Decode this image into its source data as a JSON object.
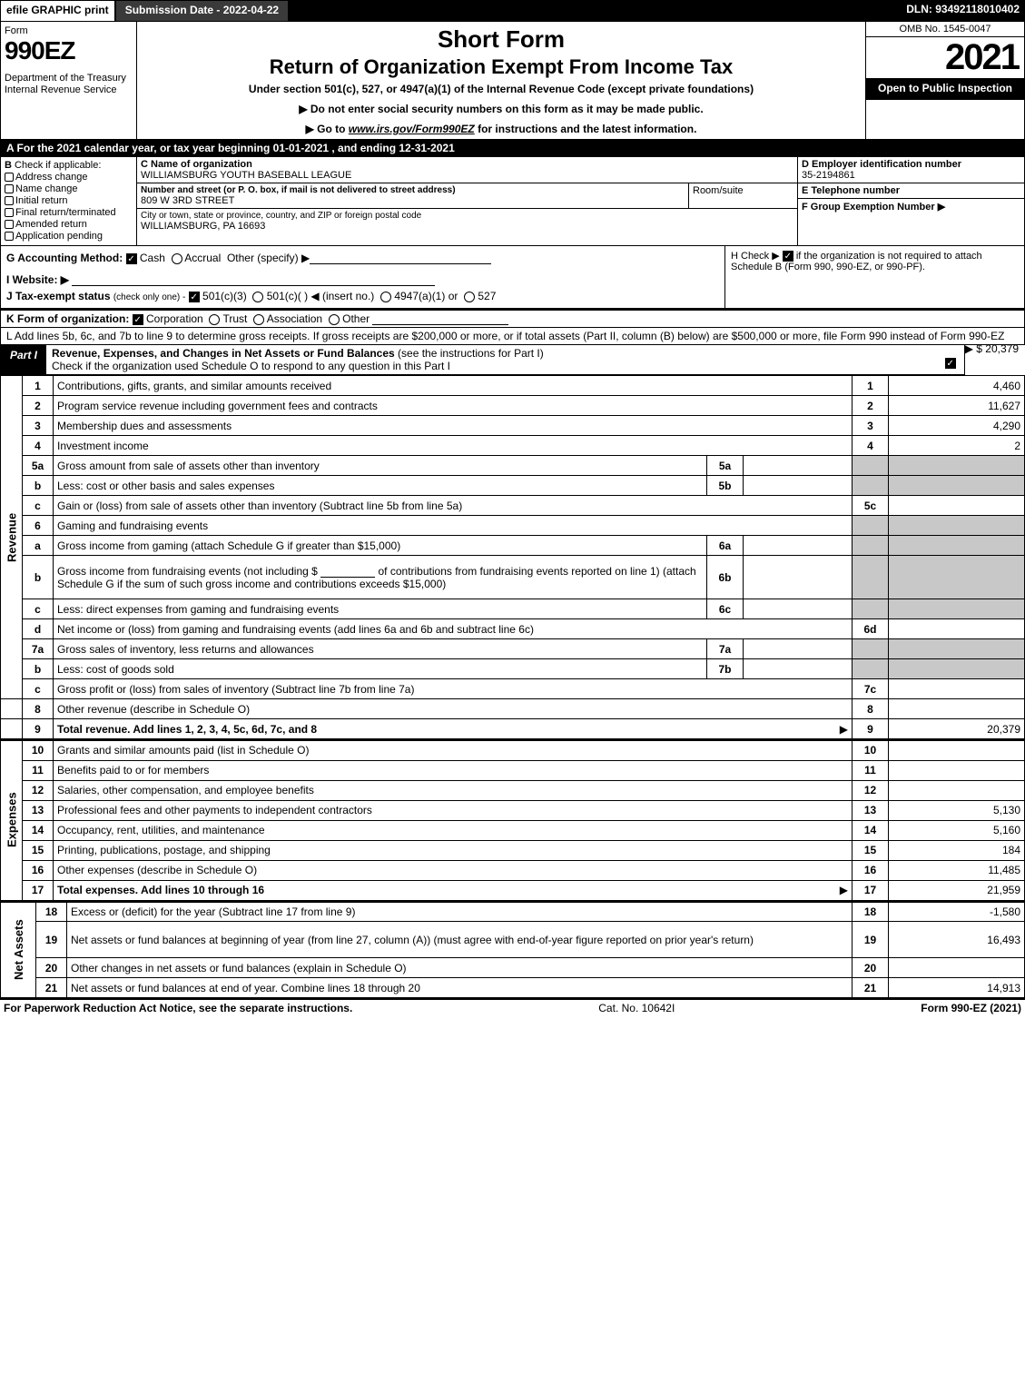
{
  "topbar": {
    "efile": "efile GRAPHIC print",
    "subdate": "Submission Date - 2022-04-22",
    "dln": "DLN: 93492118010402"
  },
  "header": {
    "form_word": "Form",
    "form_no": "990EZ",
    "dept": "Department of the Treasury\nInternal Revenue Service",
    "short_form": "Short Form",
    "return_title": "Return of Organization Exempt From Income Tax",
    "subtitle": "Under section 501(c), 527, or 4947(a)(1) of the Internal Revenue Code (except private foundations)",
    "note1": "▶ Do not enter social security numbers on this form as it may be made public.",
    "note2_pre": "▶ Go to ",
    "note2_link": "www.irs.gov/Form990EZ",
    "note2_post": " for instructions and the latest information.",
    "omb": "OMB No. 1545-0047",
    "year": "2021",
    "open": "Open to Public Inspection"
  },
  "rowA": "A  For the 2021 calendar year, or tax year beginning 01-01-2021 , and ending 12-31-2021",
  "colB": {
    "hdr": "B",
    "hdr2": "Check if applicable:",
    "items": [
      "Address change",
      "Name change",
      "Initial return",
      "Final return/terminated",
      "Amended return",
      "Application pending"
    ]
  },
  "colC": {
    "c_lbl": "C Name of organization",
    "c_val": "WILLIAMSBURG YOUTH BASEBALL LEAGUE",
    "street_lbl": "Number and street (or P. O. box, if mail is not delivered to street address)",
    "street_val": "809 W 3RD STREET",
    "room_lbl": "Room/suite",
    "city_lbl": "City or town, state or province, country, and ZIP or foreign postal code",
    "city_val": "WILLIAMSBURG, PA  16693"
  },
  "colDEF": {
    "d_lbl": "D Employer identification number",
    "d_val": "35-2194861",
    "e_lbl": "E Telephone number",
    "e_val": "",
    "f_lbl": "F Group Exemption Number  ▶",
    "f_val": ""
  },
  "misc": {
    "g": "G Accounting Method:",
    "g_cash": "Cash",
    "g_accrual": "Accrual",
    "g_other": "Other (specify) ▶",
    "i": "I Website: ▶",
    "j": "J Tax-exempt status",
    "j_note": "(check only one) -",
    "j_501c3": "501(c)(3)",
    "j_501c": "501(c)(  ) ◀ (insert no.)",
    "j_4947": "4947(a)(1) or",
    "j_527": "527",
    "h_pre": "H  Check ▶ ",
    "h_post": " if the organization is not required to attach Schedule B (Form 990, 990-EZ, or 990-PF)."
  },
  "rowK": {
    "k_pre": "K Form of organization: ",
    "k_corp": "Corporation",
    "k_trust": "Trust",
    "k_assoc": "Association",
    "k_other": "Other"
  },
  "rowL": {
    "text": "L Add lines 5b, 6c, and 7b to line 9 to determine gross receipts. If gross receipts are $200,000 or more, or if total assets (Part II, column (B) below) are $500,000 or more, file Form 990 instead of Form 990-EZ",
    "val": "▶ $ 20,379"
  },
  "partI": {
    "tab": "Part I",
    "title_bold": "Revenue, Expenses, and Changes in Net Assets or Fund Balances",
    "title_rest": " (see the instructions for Part I)",
    "sub": "Check if the organization used Schedule O to respond to any question in this Part I"
  },
  "sides": {
    "revenue": "Revenue",
    "expenses": "Expenses",
    "netassets": "Net Assets"
  },
  "revenue_lines": [
    {
      "n": "1",
      "desc": "Contributions, gifts, grants, and similar amounts received",
      "rn": "1",
      "val": "4,460"
    },
    {
      "n": "2",
      "desc": "Program service revenue including government fees and contracts",
      "rn": "2",
      "val": "11,627"
    },
    {
      "n": "3",
      "desc": "Membership dues and assessments",
      "rn": "3",
      "val": "4,290"
    },
    {
      "n": "4",
      "desc": "Investment income",
      "rn": "4",
      "val": "2"
    }
  ],
  "line5": {
    "a_n": "5a",
    "a_desc": "Gross amount from sale of assets other than inventory",
    "a_in": "5a",
    "b_n": "b",
    "b_desc": "Less: cost or other basis and sales expenses",
    "b_in": "5b",
    "c_n": "c",
    "c_desc": "Gain or (loss) from sale of assets other than inventory (Subtract line 5b from line 5a)",
    "c_rn": "5c"
  },
  "line6": {
    "hdr_n": "6",
    "hdr_desc": "Gaming and fundraising events",
    "a_n": "a",
    "a_desc": "Gross income from gaming (attach Schedule G if greater than $15,000)",
    "a_in": "6a",
    "b_n": "b",
    "b_desc1": "Gross income from fundraising events (not including $",
    "b_desc2": "of contributions from fundraising events reported on line 1) (attach Schedule G if the sum of such gross income and contributions exceeds $15,000)",
    "b_in": "6b",
    "c_n": "c",
    "c_desc": "Less: direct expenses from gaming and fundraising events",
    "c_in": "6c",
    "d_n": "d",
    "d_desc": "Net income or (loss) from gaming and fundraising events (add lines 6a and 6b and subtract line 6c)",
    "d_rn": "6d"
  },
  "line7": {
    "a_n": "7a",
    "a_desc": "Gross sales of inventory, less returns and allowances",
    "a_in": "7a",
    "b_n": "b",
    "b_desc": "Less: cost of goods sold",
    "b_in": "7b",
    "c_n": "c",
    "c_desc": "Gross profit or (loss) from sales of inventory (Subtract line 7b from line 7a)",
    "c_rn": "7c"
  },
  "line8": {
    "n": "8",
    "desc": "Other revenue (describe in Schedule O)",
    "rn": "8",
    "val": ""
  },
  "line9": {
    "n": "9",
    "desc": "Total revenue. Add lines 1, 2, 3, 4, 5c, 6d, 7c, and 8",
    "rn": "9",
    "val": "20,379"
  },
  "expense_lines": [
    {
      "n": "10",
      "desc": "Grants and similar amounts paid (list in Schedule O)",
      "rn": "10",
      "val": ""
    },
    {
      "n": "11",
      "desc": "Benefits paid to or for members",
      "rn": "11",
      "val": ""
    },
    {
      "n": "12",
      "desc": "Salaries, other compensation, and employee benefits",
      "rn": "12",
      "val": ""
    },
    {
      "n": "13",
      "desc": "Professional fees and other payments to independent contractors",
      "rn": "13",
      "val": "5,130"
    },
    {
      "n": "14",
      "desc": "Occupancy, rent, utilities, and maintenance",
      "rn": "14",
      "val": "5,160"
    },
    {
      "n": "15",
      "desc": "Printing, publications, postage, and shipping",
      "rn": "15",
      "val": "184"
    },
    {
      "n": "16",
      "desc": "Other expenses (describe in Schedule O)",
      "rn": "16",
      "val": "11,485"
    },
    {
      "n": "17",
      "desc": "Total expenses. Add lines 10 through 16",
      "rn": "17",
      "val": "21,959",
      "bold": true
    }
  ],
  "netasset_lines": [
    {
      "n": "18",
      "desc": "Excess or (deficit) for the year (Subtract line 17 from line 9)",
      "rn": "18",
      "val": "-1,580"
    },
    {
      "n": "19",
      "desc": "Net assets or fund balances at beginning of year (from line 27, column (A)) (must agree with end-of-year figure reported on prior year's return)",
      "rn": "19",
      "val": "16,493",
      "tall": true
    },
    {
      "n": "20",
      "desc": "Other changes in net assets or fund balances (explain in Schedule O)",
      "rn": "20",
      "val": ""
    },
    {
      "n": "21",
      "desc": "Net assets or fund balances at end of year. Combine lines 18 through 20",
      "rn": "21",
      "val": "14,913"
    }
  ],
  "footer": {
    "left": "For Paperwork Reduction Act Notice, see the separate instructions.",
    "mid": "Cat. No. 10642I",
    "right": "Form 990-EZ (2021)"
  }
}
